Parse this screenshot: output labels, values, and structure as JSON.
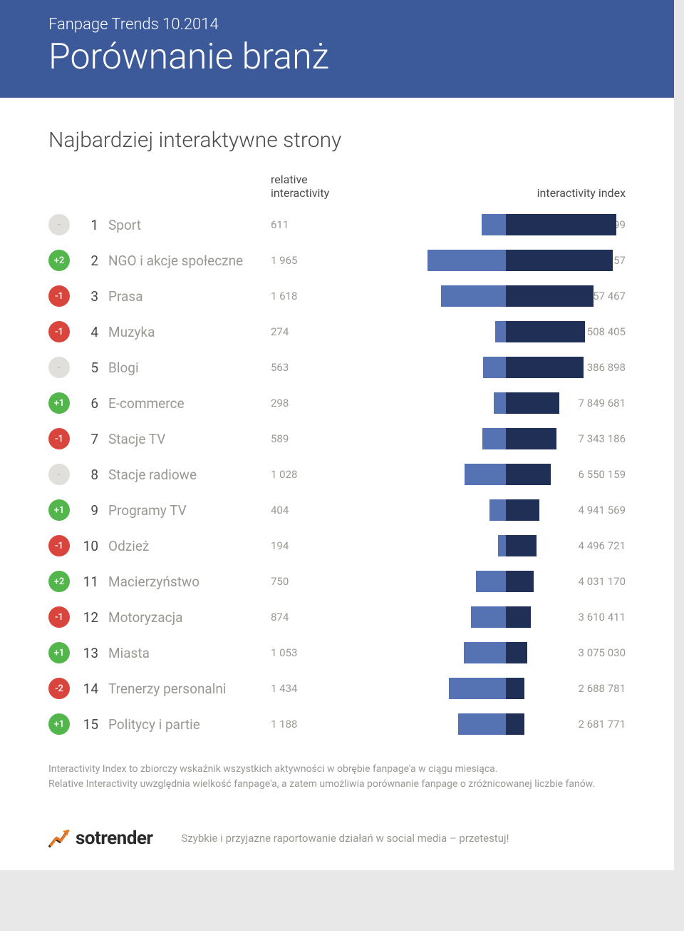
{
  "header": {
    "subtitle": "Fanpage Trends 10.2014",
    "title": "Porównanie branż"
  },
  "section_title": "Najbardziej interaktywne strony",
  "col_rel": "relative interactivity",
  "col_idx": "interactivity index",
  "max_rel": 1965,
  "max_idx": 16130599,
  "bar_light_color": "#5573b3",
  "bar_dark_color": "#202f56",
  "badge_colors": {
    "neutral": "#e0dfdc",
    "up": "#53b64c",
    "down": "#d9453d"
  },
  "rows": [
    {
      "change": "-",
      "dir": "neutral",
      "rank": "1",
      "name": "Sport",
      "rel": "611",
      "rel_v": 611,
      "idx": "16 130 599",
      "idx_v": 16130599
    },
    {
      "change": "+2",
      "dir": "up",
      "rank": "2",
      "name": "NGO i akcje społeczne",
      "rel": "1 965",
      "rel_v": 1965,
      "idx": "15 602 157",
      "idx_v": 15602157
    },
    {
      "change": "-1",
      "dir": "down",
      "rank": "3",
      "name": "Prasa",
      "rel": "1 618",
      "rel_v": 1618,
      "idx": "12 757 467",
      "idx_v": 12757467
    },
    {
      "change": "-1",
      "dir": "down",
      "rank": "4",
      "name": "Muzyka",
      "rel": "274",
      "rel_v": 274,
      "idx": "11 508 405",
      "idx_v": 11508405
    },
    {
      "change": "-",
      "dir": "neutral",
      "rank": "5",
      "name": "Blogi",
      "rel": "563",
      "rel_v": 563,
      "idx": "11 386 898",
      "idx_v": 11386898
    },
    {
      "change": "+1",
      "dir": "up",
      "rank": "6",
      "name": "E-commerce",
      "rel": "298",
      "rel_v": 298,
      "idx": "7 849 681",
      "idx_v": 7849681
    },
    {
      "change": "-1",
      "dir": "down",
      "rank": "7",
      "name": "Stacje TV",
      "rel": "589",
      "rel_v": 589,
      "idx": "7 343 186",
      "idx_v": 7343186
    },
    {
      "change": "-",
      "dir": "neutral",
      "rank": "8",
      "name": "Stacje radiowe",
      "rel": "1 028",
      "rel_v": 1028,
      "idx": "6 550 159",
      "idx_v": 6550159
    },
    {
      "change": "+1",
      "dir": "up",
      "rank": "9",
      "name": "Programy TV",
      "rel": "404",
      "rel_v": 404,
      "idx": "4 941 569",
      "idx_v": 4941569
    },
    {
      "change": "-1",
      "dir": "down",
      "rank": "10",
      "name": "Odzież",
      "rel": "194",
      "rel_v": 194,
      "idx": "4 496 721",
      "idx_v": 4496721
    },
    {
      "change": "+2",
      "dir": "up",
      "rank": "11",
      "name": "Macierzyństwo",
      "rel": "750",
      "rel_v": 750,
      "idx": "4 031 170",
      "idx_v": 4031170
    },
    {
      "change": "-1",
      "dir": "down",
      "rank": "12",
      "name": "Motoryzacja",
      "rel": "874",
      "rel_v": 874,
      "idx": "3 610 411",
      "idx_v": 3610411
    },
    {
      "change": "+1",
      "dir": "up",
      "rank": "13",
      "name": "Miasta",
      "rel": "1 053",
      "rel_v": 1053,
      "idx": "3 075 030",
      "idx_v": 3075030
    },
    {
      "change": "-2",
      "dir": "down",
      "rank": "14",
      "name": "Trenerzy personalni",
      "rel": "1 434",
      "rel_v": 1434,
      "idx": "2 688 781",
      "idx_v": 2688781
    },
    {
      "change": "+1",
      "dir": "up",
      "rank": "15",
      "name": "Politycy i partie",
      "rel": "1 188",
      "rel_v": 1188,
      "idx": "2 681 771",
      "idx_v": 2681771
    }
  ],
  "footnote": {
    "line1": "Interactivity Index to zbiorczy wskaźnik wszystkich aktywności w obrębie fanpage'a w ciągu miesiąca.",
    "line2": "Relative Interactivity uwzględnia wielkość fanpage'a, a zatem umożliwia porównanie fanpage o zróżnicowanej liczbie fanów."
  },
  "logo": "sotrender",
  "tagline": "Szybkie i przyjazne raportowanie działań w social media – przetestuj!",
  "chart": {
    "bar_area_width": 270,
    "light_scale": 0.22,
    "dark_scale": 1.0
  }
}
